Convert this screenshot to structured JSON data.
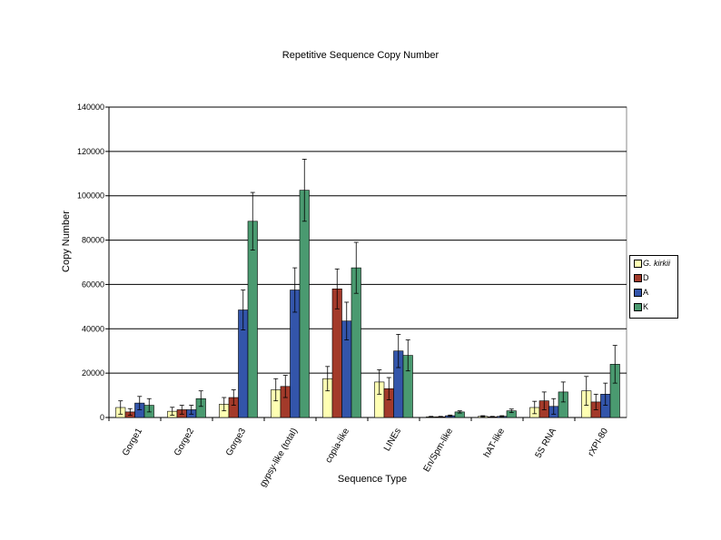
{
  "chart_data": {
    "type": "bar",
    "title": "Repetitive Sequence Copy Number",
    "xlabel": "Sequence Type",
    "ylabel": "Copy Number",
    "ylim": [
      0,
      140000
    ],
    "yticks": [
      "0",
      "20000",
      "40000",
      "60000",
      "80000",
      "100000",
      "120000",
      "140000"
    ],
    "yticks_values": [
      0,
      20000,
      40000,
      60000,
      80000,
      100000,
      120000,
      140000
    ],
    "grid": true,
    "legend_position": "right",
    "categories": [
      "Gorge1",
      "Gorge2",
      "Gorge3",
      "gypsy-like (total)",
      "copia-like",
      "LINEs",
      "En/Spm-like",
      "hAT-like",
      "5S RNA",
      "rXPI-80"
    ],
    "series": [
      {
        "name": "G. kirkii",
        "color": "#ffffb3",
        "values": [
          4500,
          2800,
          6000,
          12500,
          17500,
          16000,
          300,
          500,
          4500,
          12000
        ],
        "errors": [
          3000,
          1800,
          3000,
          5000,
          5500,
          5500,
          200,
          300,
          2800,
          6500
        ]
      },
      {
        "name": "D",
        "color": "#a33a2a",
        "values": [
          2500,
          3500,
          9000,
          14000,
          58000,
          13000,
          300,
          300,
          7500,
          7000
        ],
        "errors": [
          1500,
          2000,
          3500,
          5000,
          9000,
          5000,
          200,
          200,
          4000,
          3500
        ]
      },
      {
        "name": "A",
        "color": "#3355aa",
        "values": [
          6500,
          3500,
          48500,
          57500,
          43500,
          30000,
          800,
          500,
          5000,
          10500
        ],
        "errors": [
          3000,
          2000,
          9000,
          10000,
          8500,
          7500,
          300,
          300,
          3500,
          5000
        ]
      },
      {
        "name": "K",
        "color": "#4a9a70",
        "values": [
          5500,
          8500,
          88500,
          102500,
          67500,
          28000,
          2500,
          3000,
          11500,
          24000
        ],
        "errors": [
          3000,
          3500,
          13000,
          14000,
          11500,
          7000,
          500,
          800,
          4500,
          8500
        ]
      }
    ]
  }
}
